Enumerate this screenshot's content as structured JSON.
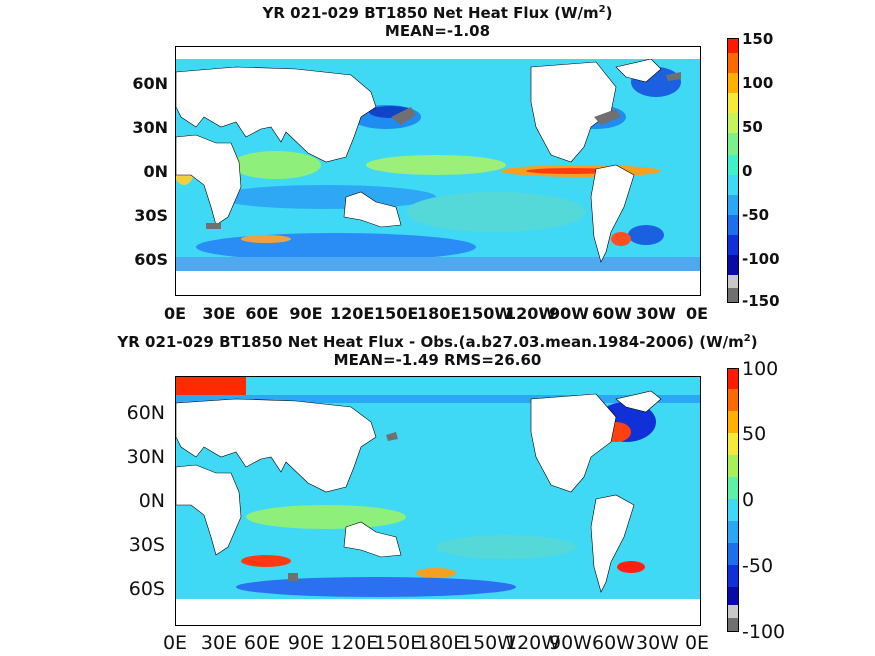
{
  "panels": [
    {
      "title_line1": "YR 021-029 BT1850  Net Heat Flux (W/m",
      "title_sup": "2",
      "title_close": ")",
      "title_line2": "MEAN=-1.08",
      "lat_labels": [
        "60N",
        "30N",
        "0N",
        "30S",
        "60S"
      ],
      "lon_labels": [
        "0E",
        "30E",
        "60E",
        "90E",
        "120E",
        "150E",
        "180E",
        "150W",
        "120W",
        "90W",
        "60W",
        "30W",
        "0E"
      ],
      "colorbar_labels": [
        "150",
        "100",
        "50",
        "0",
        "-50",
        "-100",
        "-150"
      ],
      "colorbar_range": [
        -150,
        150
      ]
    },
    {
      "title_line1": "YR 021-029 BT1850  Net Heat Flux - Obs.(a.b27.03.mean.1984-2006) (W/m",
      "title_sup": "2",
      "title_close": ")",
      "title_line2": "MEAN=-1.49 RMS=26.60",
      "lat_labels": [
        "60N",
        "30N",
        "0N",
        "30S",
        "60S"
      ],
      "lon_labels": [
        "0E",
        "30E",
        "60E",
        "90E",
        "120E",
        "150E",
        "180E",
        "150W",
        "120W",
        "90W",
        "60W",
        "30W",
        "0E"
      ],
      "colorbar_labels": [
        "100",
        "50",
        "0",
        "-50",
        "-100"
      ],
      "colorbar_range": [
        -100,
        100
      ]
    }
  ],
  "colors": {
    "land": "#ffffff",
    "ice": "#707070",
    "ocean_base": "#3fd9f5",
    "warm": "#f5e93a",
    "hot": "#ff7a00",
    "cold": "#1f6bff",
    "very_cold": "#0a0aa8"
  }
}
